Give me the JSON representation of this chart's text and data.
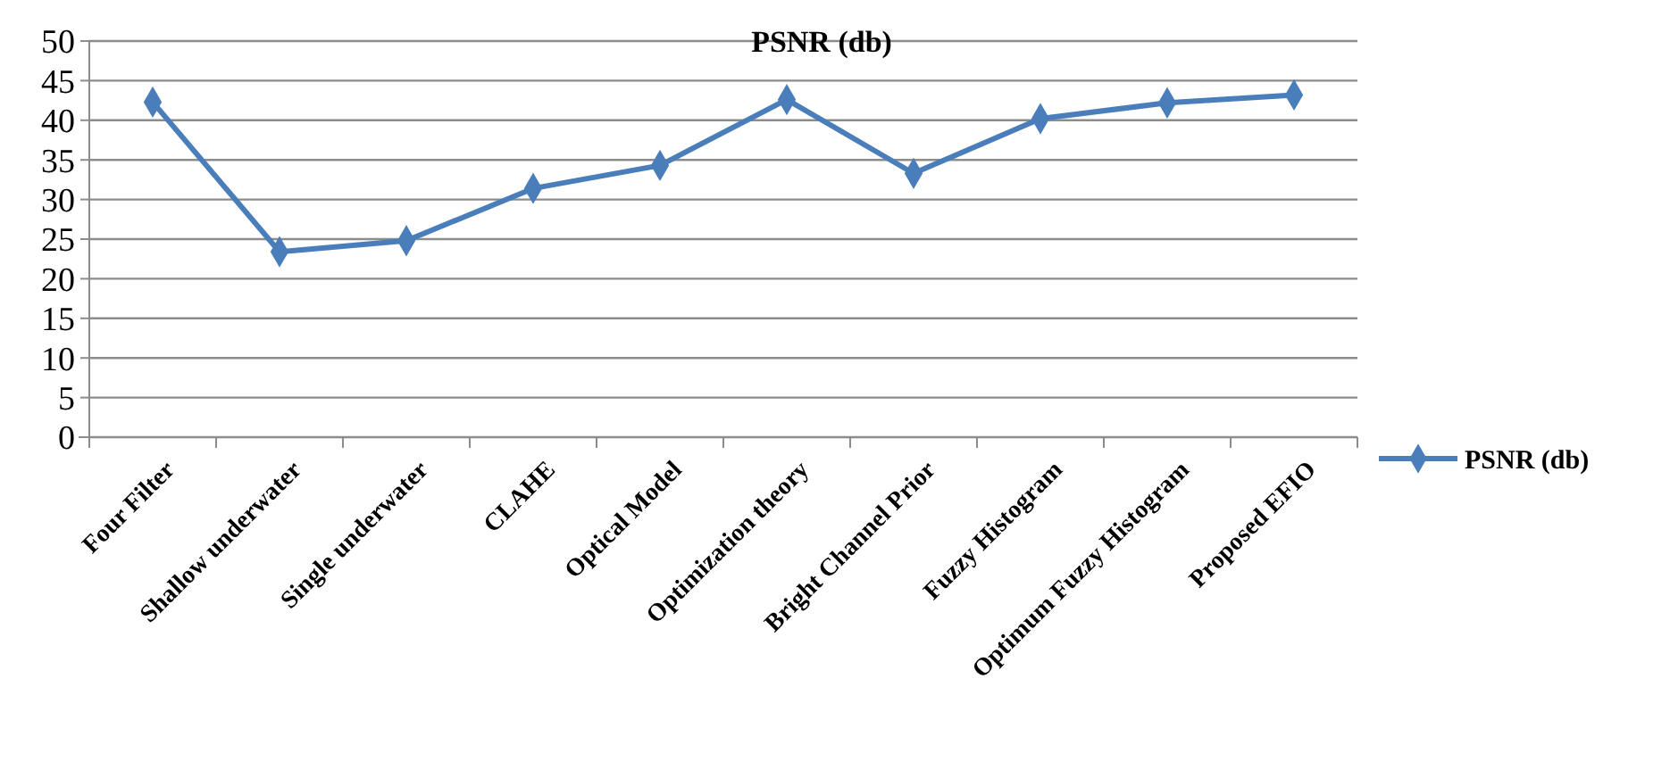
{
  "chart_data": {
    "type": "line",
    "title": "PSNR (db)",
    "categories": [
      "Four Filter",
      "Shallow underwater",
      "Single underwater",
      "CLAHE",
      "Optical Model",
      "Optimization theory",
      "Bright Channel  Prior",
      "Fuzzy Histogram",
      "Optimum Fuzzy Histogram",
      "Proposed EFIO"
    ],
    "series": [
      {
        "name": "PSNR (db)",
        "color": "#4a7ebb",
        "values": [
          42.3,
          23.4,
          24.8,
          31.4,
          34.3,
          42.6,
          33.3,
          40.2,
          42.2,
          43.2
        ]
      }
    ],
    "ylim": [
      0,
      50
    ],
    "yticks": [
      0,
      5,
      10,
      15,
      20,
      25,
      30,
      35,
      40,
      45,
      50
    ],
    "grid": "y",
    "legend": "right",
    "marker": "diamond",
    "line_style": "solid"
  }
}
